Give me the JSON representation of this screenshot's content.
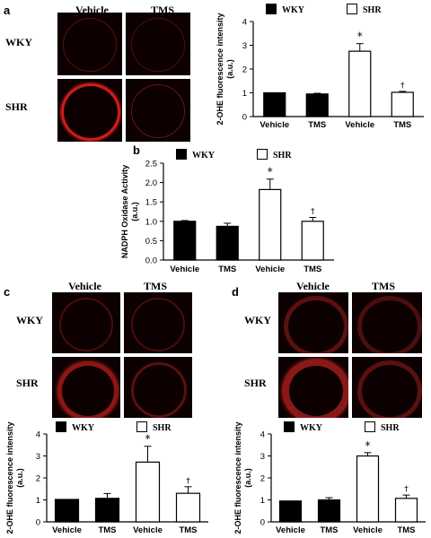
{
  "panels": {
    "a": {
      "label": "a",
      "col_headers": [
        "Vehicle",
        "TMS"
      ],
      "row_labels": [
        "WKY",
        "SHR"
      ]
    },
    "b": {
      "label": "b"
    },
    "c": {
      "label": "c",
      "col_headers": [
        "Vehicle",
        "TMS"
      ],
      "row_labels": [
        "WKY",
        "SHR"
      ]
    },
    "d": {
      "label": "d",
      "col_headers": [
        "Vehicle",
        "TMS"
      ],
      "row_labels": [
        "WKY",
        "SHR"
      ]
    }
  },
  "legend": {
    "wky": "WKY",
    "shr": "SHR"
  },
  "colors": {
    "wky_fill": "#000000",
    "shr_fill": "#ffffff",
    "stain": "#d11a1a",
    "background": "#0d0000"
  },
  "chart_data": [
    {
      "panel": "a",
      "type": "bar",
      "categories": [
        "Vehicle",
        "TMS",
        "Vehicle",
        "TMS"
      ],
      "series": [
        {
          "name": "WKY",
          "values": [
            1.0,
            0.95,
            null,
            null
          ],
          "errors": [
            0.0,
            0.03,
            null,
            null
          ]
        },
        {
          "name": "SHR",
          "values": [
            null,
            null,
            2.75,
            1.02
          ],
          "errors": [
            null,
            null,
            0.32,
            0.04
          ]
        }
      ],
      "annotations": [
        "",
        "",
        "*",
        "†"
      ],
      "ylabel": "2-OHE fluorescence intensity\n(a.u.)",
      "ylim": [
        0,
        4
      ],
      "yticks": [
        0,
        1,
        2,
        3,
        4
      ]
    },
    {
      "panel": "b",
      "type": "bar",
      "categories": [
        "Vehicle",
        "TMS",
        "Vehicle",
        "TMS"
      ],
      "series": [
        {
          "name": "WKY",
          "values": [
            1.0,
            0.87,
            null,
            null
          ],
          "errors": [
            0.02,
            0.08,
            null,
            null
          ]
        },
        {
          "name": "SHR",
          "values": [
            null,
            null,
            1.82,
            1.0
          ],
          "errors": [
            null,
            null,
            0.27,
            0.1
          ]
        }
      ],
      "annotations": [
        "",
        "",
        "*",
        "†"
      ],
      "ylabel": "NADPH Oxidase Activity\n(a.u.)",
      "ylim": [
        0,
        2.5
      ],
      "yticks": [
        "0.0",
        "0.5",
        "1.0",
        "1.5",
        "2.0",
        "2.5"
      ]
    },
    {
      "panel": "c",
      "type": "bar",
      "categories": [
        "Vehicle",
        "TMS",
        "Vehicle",
        "TMS"
      ],
      "series": [
        {
          "name": "WKY",
          "values": [
            1.02,
            1.07,
            null,
            null
          ],
          "errors": [
            0.0,
            0.22,
            null,
            null
          ]
        },
        {
          "name": "SHR",
          "values": [
            null,
            null,
            2.72,
            1.3
          ],
          "errors": [
            null,
            null,
            0.72,
            0.3
          ]
        }
      ],
      "annotations": [
        "",
        "",
        "*",
        "†"
      ],
      "ylabel": "2-OHE fluorescence intensity\n(a.u.)",
      "ylim": [
        0,
        4
      ],
      "yticks": [
        0,
        1,
        2,
        3,
        4
      ]
    },
    {
      "panel": "d",
      "type": "bar",
      "categories": [
        "Vehicle",
        "TMS",
        "Vehicle",
        "TMS"
      ],
      "series": [
        {
          "name": "WKY",
          "values": [
            0.95,
            1.0,
            null,
            null
          ],
          "errors": [
            0.0,
            0.1,
            null,
            null
          ]
        },
        {
          "name": "SHR",
          "values": [
            null,
            null,
            3.0,
            1.07
          ],
          "errors": [
            null,
            null,
            0.15,
            0.15
          ]
        }
      ],
      "annotations": [
        "",
        "",
        "*",
        "†"
      ],
      "ylabel": "2-OHE fluorescence intensity\n(a.u.)",
      "ylim": [
        0,
        4
      ],
      "yticks": [
        0,
        1,
        2,
        3,
        4
      ]
    }
  ]
}
